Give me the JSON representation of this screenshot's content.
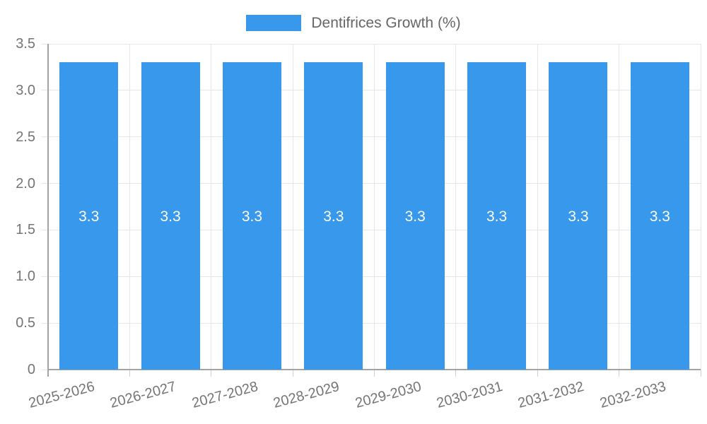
{
  "chart_data": {
    "type": "bar",
    "title": "",
    "legend_label": "Dentifrices Growth (%)",
    "legend_position": "top",
    "categories": [
      "2025-2026",
      "2026-2027",
      "2027-2028",
      "2028-2029",
      "2029-2030",
      "2030-2031",
      "2031-2032",
      "2032-2033"
    ],
    "series": [
      {
        "name": "Dentifrices Growth (%)",
        "values": [
          3.3,
          3.3,
          3.3,
          3.3,
          3.3,
          3.3,
          3.3,
          3.3
        ]
      }
    ],
    "bar_value_labels": [
      "3.3",
      "3.3",
      "3.3",
      "3.3",
      "3.3",
      "3.3",
      "3.3",
      "3.3"
    ],
    "xlabel": "",
    "ylabel": "",
    "ylim": [
      0,
      3.5
    ],
    "ytick_labels": [
      "0",
      "0.5",
      "1.0",
      "1.5",
      "2.0",
      "2.5",
      "3.0",
      "3.5"
    ],
    "grid": "on",
    "colors": {
      "bar": "#3898ec",
      "bar_label_text": "#ffffff",
      "axis_text": "#757575",
      "legend_text": "#666666",
      "gridline": "#e6e6e6",
      "tick_line": "#cfcfcf",
      "axis_line": "#a3a3a3",
      "background": "#ffffff"
    }
  }
}
